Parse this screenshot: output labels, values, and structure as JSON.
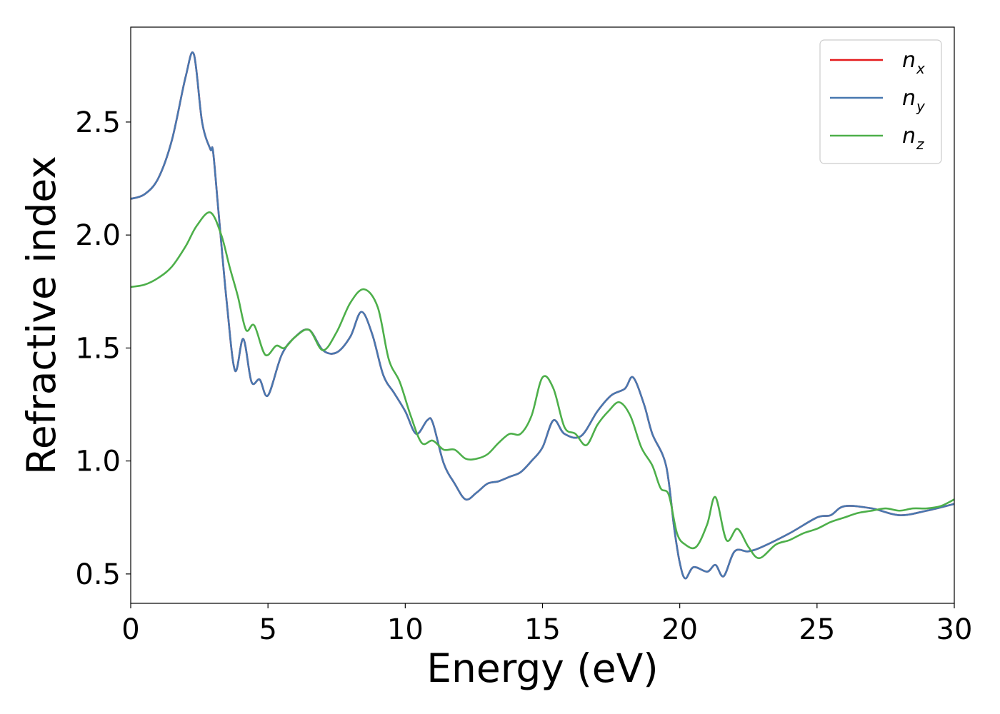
{
  "chart_data": {
    "type": "line",
    "title": "",
    "xlabel": "Energy (eV)",
    "ylabel": "Refractive index",
    "xlim": [
      0,
      30
    ],
    "ylim": [
      0.37,
      2.92
    ],
    "x_ticks": [
      0,
      5,
      10,
      15,
      20,
      25,
      30
    ],
    "x_tick_labels": [
      "0",
      "5",
      "10",
      "15",
      "20",
      "25",
      "30"
    ],
    "y_ticks": [
      0.5,
      1.0,
      1.5,
      2.0,
      2.5
    ],
    "y_tick_labels": [
      "0.5",
      "1.0",
      "1.5",
      "2.0",
      "2.5"
    ],
    "grid": false,
    "legend_position": "top-right",
    "series": [
      {
        "name": "n_x",
        "label_main": "n",
        "label_sub": "x",
        "color": "#e41a1c",
        "x": [
          0,
          0.5,
          1,
          1.5,
          2,
          2.3,
          2.6,
          2.9,
          3.0,
          3.2,
          3.5,
          3.8,
          4.1,
          4.4,
          4.7,
          5.0,
          5.5,
          6.0,
          6.5,
          7.0,
          7.5,
          8.0,
          8.4,
          8.8,
          9.2,
          9.6,
          10.0,
          10.4,
          10.8,
          11.0,
          11.4,
          11.8,
          12.2,
          12.6,
          13.0,
          13.4,
          13.8,
          14.2,
          14.6,
          15.0,
          15.4,
          15.8,
          16.4,
          17.0,
          17.5,
          18.0,
          18.3,
          18.7,
          19.0,
          19.5,
          19.8,
          20.0,
          20.2,
          20.5,
          21.0,
          21.3,
          21.6,
          22.0,
          22.5,
          23.0,
          24.0,
          25.0,
          25.5,
          26.0,
          27.0,
          28.0,
          29.0,
          30.0
        ],
        "y": [
          2.16,
          2.18,
          2.25,
          2.42,
          2.7,
          2.8,
          2.5,
          2.38,
          2.37,
          2.1,
          1.7,
          1.4,
          1.54,
          1.35,
          1.36,
          1.29,
          1.47,
          1.55,
          1.58,
          1.49,
          1.48,
          1.55,
          1.66,
          1.56,
          1.38,
          1.3,
          1.22,
          1.12,
          1.18,
          1.17,
          0.99,
          0.9,
          0.83,
          0.86,
          0.9,
          0.91,
          0.93,
          0.95,
          1.0,
          1.06,
          1.18,
          1.12,
          1.11,
          1.22,
          1.29,
          1.32,
          1.37,
          1.25,
          1.12,
          0.98,
          0.7,
          0.55,
          0.48,
          0.53,
          0.51,
          0.54,
          0.49,
          0.6,
          0.6,
          0.62,
          0.68,
          0.75,
          0.76,
          0.8,
          0.79,
          0.76,
          0.78,
          0.81
        ]
      },
      {
        "name": "n_y",
        "label_main": "n",
        "label_sub": "y",
        "color": "#4878b0",
        "x": [
          0,
          0.5,
          1,
          1.5,
          2,
          2.3,
          2.6,
          2.9,
          3.0,
          3.2,
          3.5,
          3.8,
          4.1,
          4.4,
          4.7,
          5.0,
          5.5,
          6.0,
          6.5,
          7.0,
          7.5,
          8.0,
          8.4,
          8.8,
          9.2,
          9.6,
          10.0,
          10.4,
          10.8,
          11.0,
          11.4,
          11.8,
          12.2,
          12.6,
          13.0,
          13.4,
          13.8,
          14.2,
          14.6,
          15.0,
          15.4,
          15.8,
          16.4,
          17.0,
          17.5,
          18.0,
          18.3,
          18.7,
          19.0,
          19.5,
          19.8,
          20.0,
          20.2,
          20.5,
          21.0,
          21.3,
          21.6,
          22.0,
          22.5,
          23.0,
          24.0,
          25.0,
          25.5,
          26.0,
          27.0,
          28.0,
          29.0,
          30.0
        ],
        "y": [
          2.16,
          2.18,
          2.25,
          2.42,
          2.7,
          2.8,
          2.5,
          2.38,
          2.37,
          2.1,
          1.7,
          1.4,
          1.54,
          1.35,
          1.36,
          1.29,
          1.47,
          1.55,
          1.58,
          1.49,
          1.48,
          1.55,
          1.66,
          1.56,
          1.38,
          1.3,
          1.22,
          1.12,
          1.18,
          1.17,
          0.99,
          0.9,
          0.83,
          0.86,
          0.9,
          0.91,
          0.93,
          0.95,
          1.0,
          1.06,
          1.18,
          1.12,
          1.11,
          1.22,
          1.29,
          1.32,
          1.37,
          1.25,
          1.12,
          0.98,
          0.7,
          0.55,
          0.48,
          0.53,
          0.51,
          0.54,
          0.49,
          0.6,
          0.6,
          0.62,
          0.68,
          0.75,
          0.76,
          0.8,
          0.79,
          0.76,
          0.78,
          0.81
        ]
      },
      {
        "name": "n_z",
        "label_main": "n",
        "label_sub": "z",
        "color": "#4daf4a",
        "x": [
          0,
          0.5,
          1,
          1.5,
          2,
          2.4,
          2.9,
          3.3,
          3.6,
          3.9,
          4.2,
          4.5,
          4.9,
          5.3,
          5.6,
          6.0,
          6.5,
          7.0,
          7.5,
          8.0,
          8.5,
          9.0,
          9.4,
          9.8,
          10.2,
          10.6,
          11.0,
          11.4,
          11.8,
          12.2,
          12.6,
          13.0,
          13.4,
          13.8,
          14.2,
          14.6,
          15.0,
          15.4,
          15.8,
          16.2,
          16.6,
          17.0,
          17.4,
          17.8,
          18.2,
          18.6,
          19.0,
          19.3,
          19.6,
          19.9,
          20.2,
          20.6,
          21.0,
          21.3,
          21.7,
          22.1,
          22.5,
          22.9,
          23.5,
          24.0,
          24.5,
          25.0,
          25.5,
          26.0,
          26.5,
          27.0,
          27.5,
          28.0,
          28.5,
          29.0,
          29.5,
          30.0
        ],
        "y": [
          1.77,
          1.78,
          1.81,
          1.86,
          1.95,
          2.04,
          2.1,
          2.0,
          1.86,
          1.73,
          1.58,
          1.6,
          1.47,
          1.51,
          1.5,
          1.55,
          1.58,
          1.49,
          1.57,
          1.7,
          1.76,
          1.68,
          1.45,
          1.35,
          1.2,
          1.08,
          1.09,
          1.05,
          1.05,
          1.01,
          1.01,
          1.03,
          1.08,
          1.12,
          1.12,
          1.2,
          1.37,
          1.32,
          1.15,
          1.12,
          1.07,
          1.16,
          1.22,
          1.26,
          1.2,
          1.06,
          0.98,
          0.88,
          0.85,
          0.68,
          0.63,
          0.62,
          0.72,
          0.84,
          0.65,
          0.7,
          0.62,
          0.57,
          0.63,
          0.65,
          0.68,
          0.7,
          0.73,
          0.75,
          0.77,
          0.78,
          0.79,
          0.78,
          0.79,
          0.79,
          0.8,
          0.83
        ]
      }
    ]
  }
}
